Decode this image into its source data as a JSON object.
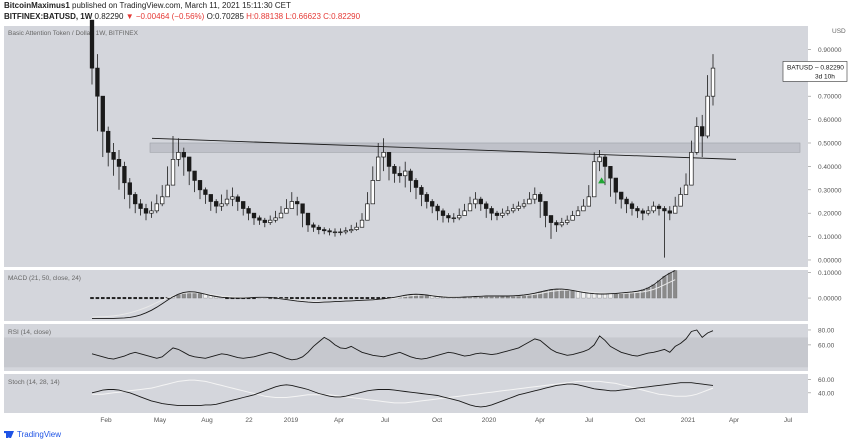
{
  "header": {
    "user": "BitcoinMaximus1",
    "published": "published on TradingView.com, March 11, 2021 15:11:30 CET",
    "symbol": "BITFINEX:BATUSD, 1W",
    "last": "0.82290",
    "change": "▼ −0.00464 (−0.56%)",
    "ohlc": [
      "O:0.70285",
      "H:0.88138",
      "L:0.66623",
      "C:0.82290"
    ]
  },
  "footer": {
    "brand": "TradingView"
  },
  "colors": {
    "bg": "#ffffff",
    "panel": "#d4d6dc",
    "axis_bg": "#ffffff",
    "candle": "#1a1a1a",
    "macd_hist": "#8a8a8a",
    "macd_hist_light": "#f2f2f2",
    "signal_line": "#e8e8e8",
    "triangle": "#21a634",
    "zone": "#b9bcc4"
  },
  "chart_data": [
    {
      "type": "candlestick",
      "title": "Basic Attention Token / Dollar, 1W, BITFINEX",
      "axis_unit": "USD",
      "ylim": [
        -0.03,
        1.0
      ],
      "y_ticks": [
        "0.90000",
        "0.80000",
        "0.70000",
        "0.60000",
        "0.50000",
        "0.40000",
        "0.30000",
        "0.20000",
        "0.10000",
        "0.00000"
      ],
      "x_ticks": [
        "Feb",
        "May",
        "Aug",
        "22",
        "2019",
        "Apr",
        "Jul",
        "Oct",
        "2020",
        "Apr",
        "Jul",
        "Oct",
        "2021",
        "Apr",
        "Jul"
      ],
      "price_label": {
        "symbol": "BATUSD",
        "value": "0.82290",
        "countdown": "3d 10h"
      },
      "resistance_zone": [
        0.46,
        0.5
      ],
      "trendline": [
        [
          0,
          0.52
        ],
        [
          102,
          0.43
        ]
      ],
      "marker": {
        "type": "triangle",
        "week": 94,
        "value": 0.34
      },
      "weeks": 116,
      "close": [
        0.82,
        0.7,
        0.55,
        0.46,
        0.43,
        0.4,
        0.33,
        0.28,
        0.24,
        0.22,
        0.2,
        0.21,
        0.24,
        0.27,
        0.32,
        0.43,
        0.46,
        0.44,
        0.38,
        0.34,
        0.3,
        0.28,
        0.25,
        0.23,
        0.24,
        0.26,
        0.27,
        0.25,
        0.22,
        0.2,
        0.18,
        0.17,
        0.16,
        0.17,
        0.18,
        0.2,
        0.22,
        0.25,
        0.24,
        0.2,
        0.15,
        0.14,
        0.13,
        0.125,
        0.12,
        0.12,
        0.12,
        0.125,
        0.13,
        0.14,
        0.17,
        0.24,
        0.34,
        0.44,
        0.46,
        0.4,
        0.37,
        0.36,
        0.38,
        0.34,
        0.31,
        0.28,
        0.25,
        0.23,
        0.21,
        0.19,
        0.18,
        0.18,
        0.19,
        0.21,
        0.24,
        0.26,
        0.24,
        0.22,
        0.2,
        0.19,
        0.2,
        0.21,
        0.22,
        0.23,
        0.24,
        0.26,
        0.28,
        0.25,
        0.19,
        0.16,
        0.15,
        0.16,
        0.17,
        0.19,
        0.21,
        0.23,
        0.27,
        0.42,
        0.44,
        0.4,
        0.35,
        0.29,
        0.26,
        0.24,
        0.22,
        0.21,
        0.2,
        0.21,
        0.23,
        0.22,
        0.21,
        0.2,
        0.23,
        0.28,
        0.32,
        0.46,
        0.57,
        0.53,
        0.7,
        0.82
      ],
      "high": [
        1.0,
        0.88,
        0.7,
        0.57,
        0.5,
        0.47,
        0.42,
        0.35,
        0.29,
        0.26,
        0.24,
        0.25,
        0.28,
        0.32,
        0.4,
        0.53,
        0.52,
        0.48,
        0.43,
        0.38,
        0.34,
        0.31,
        0.28,
        0.26,
        0.28,
        0.3,
        0.31,
        0.28,
        0.25,
        0.23,
        0.2,
        0.19,
        0.18,
        0.19,
        0.21,
        0.23,
        0.26,
        0.29,
        0.27,
        0.24,
        0.18,
        0.16,
        0.15,
        0.14,
        0.135,
        0.135,
        0.135,
        0.14,
        0.15,
        0.16,
        0.2,
        0.29,
        0.4,
        0.5,
        0.52,
        0.46,
        0.41,
        0.4,
        0.42,
        0.39,
        0.35,
        0.32,
        0.29,
        0.26,
        0.24,
        0.22,
        0.2,
        0.2,
        0.22,
        0.24,
        0.27,
        0.29,
        0.27,
        0.25,
        0.23,
        0.21,
        0.22,
        0.23,
        0.24,
        0.25,
        0.26,
        0.29,
        0.31,
        0.29,
        0.24,
        0.18,
        0.17,
        0.18,
        0.19,
        0.21,
        0.23,
        0.26,
        0.32,
        0.46,
        0.47,
        0.45,
        0.4,
        0.34,
        0.29,
        0.27,
        0.25,
        0.23,
        0.22,
        0.23,
        0.25,
        0.24,
        0.23,
        0.23,
        0.27,
        0.31,
        0.37,
        0.51,
        0.61,
        0.62,
        0.79,
        0.88
      ],
      "low": [
        0.75,
        0.55,
        0.44,
        0.4,
        0.36,
        0.3,
        0.26,
        0.22,
        0.2,
        0.19,
        0.17,
        0.18,
        0.2,
        0.23,
        0.27,
        0.37,
        0.4,
        0.36,
        0.32,
        0.29,
        0.26,
        0.24,
        0.21,
        0.2,
        0.21,
        0.23,
        0.23,
        0.21,
        0.19,
        0.17,
        0.15,
        0.15,
        0.14,
        0.15,
        0.16,
        0.18,
        0.2,
        0.22,
        0.19,
        0.14,
        0.12,
        0.12,
        0.11,
        0.11,
        0.105,
        0.1,
        0.105,
        0.11,
        0.115,
        0.125,
        0.15,
        0.2,
        0.3,
        0.39,
        0.38,
        0.34,
        0.33,
        0.33,
        0.31,
        0.29,
        0.26,
        0.23,
        0.22,
        0.2,
        0.17,
        0.16,
        0.16,
        0.16,
        0.17,
        0.19,
        0.21,
        0.22,
        0.21,
        0.18,
        0.17,
        0.17,
        0.18,
        0.19,
        0.2,
        0.21,
        0.22,
        0.24,
        0.24,
        0.18,
        0.14,
        0.09,
        0.12,
        0.14,
        0.15,
        0.17,
        0.19,
        0.21,
        0.24,
        0.35,
        0.38,
        0.32,
        0.27,
        0.24,
        0.22,
        0.2,
        0.19,
        0.18,
        0.17,
        0.19,
        0.2,
        0.19,
        0.01,
        0.17,
        0.2,
        0.24,
        0.28,
        0.38,
        0.45,
        0.44,
        0.52,
        0.66
      ]
    },
    {
      "type": "line",
      "title": "MACD (21, 50, close, 24)",
      "y_ticks": [
        "0.10000",
        "0.00000"
      ],
      "ylim": [
        -0.09,
        0.11
      ],
      "series": [
        {
          "values": [
            -0.08,
            -0.08,
            -0.08,
            -0.08,
            -0.08,
            -0.079,
            -0.078,
            -0.076,
            -0.072,
            -0.066,
            -0.058,
            -0.048,
            -0.036,
            -0.022,
            -0.008,
            0.005,
            0.015,
            0.022,
            0.025,
            0.024,
            0.02,
            0.015,
            0.01,
            0.006,
            0.003,
            0.001,
            0.0,
            0.0,
            0.0,
            0.001,
            0.002,
            0.003,
            0.003,
            0.002,
            0.0,
            -0.003,
            -0.006,
            -0.009,
            -0.012,
            -0.014,
            -0.016,
            -0.017,
            -0.017,
            -0.016,
            -0.015,
            -0.014,
            -0.013,
            -0.012,
            -0.011,
            -0.01,
            -0.009,
            -0.008,
            -0.007,
            -0.005,
            -0.003,
            0.0,
            0.003,
            0.007,
            0.011,
            0.014,
            0.015,
            0.014,
            0.012,
            0.009,
            0.006,
            0.004,
            0.003,
            0.003,
            0.003,
            0.004,
            0.005,
            0.006,
            0.007,
            0.008,
            0.008,
            0.008,
            0.008,
            0.008,
            0.009,
            0.01,
            0.012,
            0.015,
            0.019,
            0.024,
            0.029,
            0.033,
            0.035,
            0.035,
            0.033,
            0.03,
            0.026,
            0.022,
            0.019,
            0.017,
            0.016,
            0.016,
            0.017,
            0.018,
            0.02,
            0.022,
            0.024,
            0.027,
            0.032,
            0.04,
            0.052,
            0.068,
            0.085,
            0.098,
            0.108
          ]
        },
        {
          "values": [
            -0.075,
            -0.074,
            -0.073,
            -0.072,
            -0.07,
            -0.067,
            -0.063,
            -0.058,
            -0.052,
            -0.045,
            -0.037,
            -0.028,
            -0.018,
            -0.008,
            0.001,
            0.009,
            0.015,
            0.019,
            0.021,
            0.021,
            0.02,
            0.017,
            0.014,
            0.011,
            0.008,
            0.006,
            0.004,
            0.003,
            0.002,
            0.002,
            0.002,
            0.002,
            0.002,
            0.001,
            0.0,
            -0.002,
            -0.004,
            -0.006,
            -0.008,
            -0.01,
            -0.012,
            -0.013,
            -0.014,
            -0.014,
            -0.014,
            -0.013,
            -0.013,
            -0.012,
            -0.011,
            -0.01,
            -0.009,
            -0.008,
            -0.007,
            -0.006,
            -0.004,
            -0.002,
            0.0,
            0.003,
            0.006,
            0.009,
            0.011,
            0.012,
            0.012,
            0.011,
            0.009,
            0.007,
            0.006,
            0.005,
            0.004,
            0.004,
            0.005,
            0.005,
            0.006,
            0.007,
            0.007,
            0.007,
            0.008,
            0.008,
            0.008,
            0.009,
            0.01,
            0.012,
            0.015,
            0.018,
            0.022,
            0.026,
            0.029,
            0.031,
            0.031,
            0.03,
            0.028,
            0.026,
            0.024,
            0.022,
            0.02,
            0.019,
            0.018,
            0.018,
            0.018,
            0.019,
            0.02,
            0.022,
            0.024,
            0.028,
            0.034,
            0.042,
            0.052,
            0.062,
            0.072
          ]
        }
      ]
    },
    {
      "type": "line",
      "title": "RSI (14, close)",
      "y_ticks": [
        "80.00",
        "60.00"
      ],
      "ylim": [
        25,
        88
      ],
      "band": [
        30,
        70
      ],
      "values": [
        48,
        46,
        44,
        42,
        41,
        43,
        45,
        48,
        50,
        48,
        46,
        44,
        42,
        44,
        50,
        56,
        54,
        50,
        46,
        44,
        43,
        42,
        44,
        46,
        48,
        47,
        45,
        43,
        42,
        43,
        44,
        46,
        48,
        50,
        48,
        45,
        42,
        40,
        41,
        44,
        50,
        58,
        64,
        70,
        66,
        60,
        56,
        55,
        58,
        54,
        50,
        48,
        46,
        45,
        44,
        46,
        48,
        50,
        47,
        44,
        42,
        41,
        42,
        44,
        46,
        48,
        50,
        49,
        47,
        45,
        46,
        48,
        49,
        48,
        47,
        48,
        50,
        52,
        54,
        56,
        60,
        64,
        68,
        66,
        60,
        54,
        50,
        48,
        46,
        47,
        49,
        51,
        54,
        60,
        72,
        66,
        58,
        54,
        50,
        48,
        46,
        45,
        47,
        49,
        50,
        52,
        54,
        50,
        58,
        62,
        68,
        78,
        80,
        70,
        76,
        79
      ]
    },
    {
      "type": "line",
      "title": "Stoch (14, 28, 14)",
      "y_ticks": [
        "60.00",
        "40.00"
      ],
      "ylim": [
        10,
        68
      ],
      "series": [
        {
          "values": [
            40,
            42,
            44,
            45,
            45,
            44,
            42,
            40,
            37,
            34,
            31,
            28,
            26,
            24,
            23,
            22,
            21,
            21,
            21,
            21,
            21,
            22,
            22,
            23,
            25,
            27,
            29,
            31,
            33,
            35,
            37,
            40,
            43,
            46,
            49,
            51,
            52,
            51,
            49,
            47,
            45,
            42,
            39,
            37,
            35,
            34,
            34,
            35,
            37,
            39,
            41,
            43,
            44,
            45,
            45,
            45,
            44,
            43,
            42,
            41,
            40,
            39,
            38,
            37,
            36,
            34,
            32,
            30,
            28,
            25,
            22,
            20,
            19,
            20,
            22,
            25,
            28,
            31,
            34,
            37,
            39,
            41,
            43,
            45,
            47,
            49,
            51,
            52,
            53,
            53,
            52,
            50,
            48,
            46,
            45,
            44,
            43,
            43,
            44,
            45,
            46,
            47,
            48,
            49,
            50,
            51,
            52,
            53,
            54,
            55,
            55,
            55,
            54,
            53,
            52,
            51
          ]
        },
        {
          "values": [
            38,
            38,
            38,
            39,
            40,
            41,
            42,
            43,
            44,
            45,
            46,
            47,
            49,
            51,
            53,
            55,
            57,
            58,
            59,
            59,
            58,
            57,
            55,
            53,
            51,
            49,
            47,
            45,
            43,
            41,
            39,
            37,
            35,
            34,
            33,
            33,
            33,
            34,
            35,
            36,
            37,
            37,
            37,
            37,
            37,
            36,
            35,
            34,
            33,
            32,
            31,
            30,
            29,
            28,
            27,
            26,
            25,
            25,
            25,
            26,
            27,
            28,
            29,
            30,
            31,
            32,
            33,
            34,
            35,
            36,
            37,
            38,
            39,
            40,
            41,
            42,
            43,
            44,
            45,
            46,
            47,
            48,
            49,
            50,
            51,
            52,
            53,
            54,
            55,
            56,
            57,
            57,
            57,
            57,
            57,
            56,
            55,
            54,
            52,
            50,
            48,
            46,
            44,
            42,
            40,
            38,
            37,
            36,
            35,
            35,
            35,
            36,
            38,
            41,
            44,
            47
          ]
        }
      ]
    }
  ]
}
